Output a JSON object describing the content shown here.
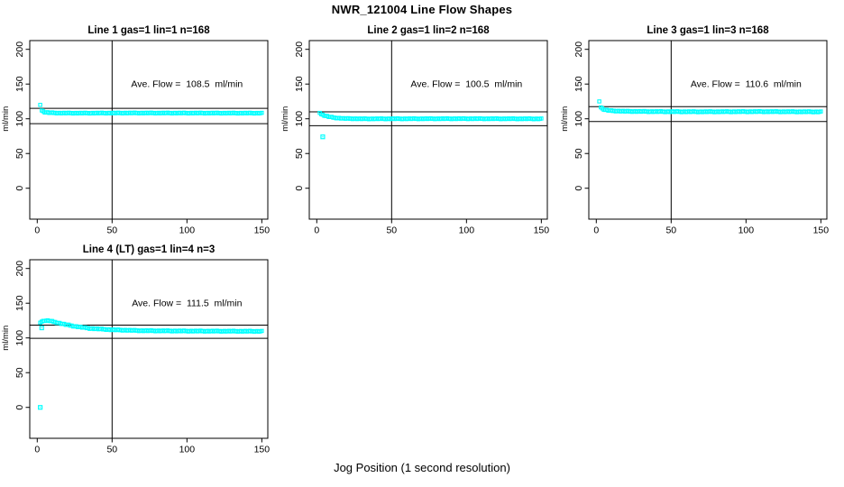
{
  "figure": {
    "title": "NWR_121004  Line Flow Shapes",
    "xlabel": "Jog Position (1 second resolution)",
    "background": "#FFFFFF",
    "marker_color": "#00FFFF",
    "line_color": "#000000"
  },
  "chart_data": [
    {
      "type": "scatter",
      "title": "Line 1 gas=1 lin=1 n=168",
      "annotation": "Ave. Flow =  108.5  ml/min",
      "ave_flow_ml_min": 108.5,
      "ylabel": "ml/min",
      "xlim": [
        -5,
        154
      ],
      "ylim": [
        -44.5,
        212.6
      ],
      "xticks": [
        0,
        50,
        100,
        150
      ],
      "yticks": [
        0,
        50,
        100,
        150,
        200
      ],
      "hlines": [
        115,
        93
      ],
      "vline": 50,
      "x_range": [
        2,
        150
      ],
      "jitter": 1.3,
      "anchors": [
        [
          2,
          120
        ],
        [
          3,
          112
        ],
        [
          4,
          110.5
        ],
        [
          5,
          109.5
        ],
        [
          8,
          108.8
        ],
        [
          15,
          108.3
        ],
        [
          30,
          108.2
        ],
        [
          60,
          108.4
        ],
        [
          100,
          108.3
        ],
        [
          150,
          108.2
        ]
      ],
      "extra_points": [],
      "annotation_xy": [
        100,
        150
      ]
    },
    {
      "type": "scatter",
      "title": "Line 2 gas=1 lin=2 n=168",
      "annotation": "Ave. Flow =  100.5  ml/min",
      "ave_flow_ml_min": 100.5,
      "ylabel": "ml/min",
      "xlim": [
        -5,
        154
      ],
      "ylim": [
        -44.5,
        212.6
      ],
      "xticks": [
        0,
        50,
        100,
        150
      ],
      "yticks": [
        0,
        50,
        100,
        150,
        200
      ],
      "hlines": [
        110,
        90
      ],
      "vline": 50,
      "x_range": [
        2,
        150
      ],
      "jitter": 1.3,
      "anchors": [
        [
          2,
          108.5
        ],
        [
          3,
          106.5
        ],
        [
          5,
          104.8
        ],
        [
          8,
          103
        ],
        [
          12,
          101.5
        ],
        [
          18,
          100.5
        ],
        [
          30,
          100
        ],
        [
          60,
          100.1
        ],
        [
          100,
          100.2
        ],
        [
          150,
          100
        ]
      ],
      "extra_points": [
        [
          4,
          74
        ]
      ],
      "annotation_xy": [
        100,
        150
      ]
    },
    {
      "type": "scatter",
      "title": "Line 3 gas=1 lin=3 n=168",
      "annotation": "Ave. Flow =  110.6  ml/min",
      "ave_flow_ml_min": 110.6,
      "ylabel": "ml/min",
      "xlim": [
        -5,
        154
      ],
      "ylim": [
        -44.5,
        212.6
      ],
      "xticks": [
        0,
        50,
        100,
        150
      ],
      "yticks": [
        0,
        50,
        100,
        150,
        200
      ],
      "hlines": [
        117.5,
        96
      ],
      "vline": 50,
      "x_range": [
        2,
        150
      ],
      "jitter": 1.5,
      "anchors": [
        [
          2,
          125
        ],
        [
          3,
          116.5
        ],
        [
          4,
          114.5
        ],
        [
          6,
          112.8
        ],
        [
          10,
          111.6
        ],
        [
          20,
          110.8
        ],
        [
          40,
          110.4
        ],
        [
          70,
          110.2
        ],
        [
          110,
          110.4
        ],
        [
          150,
          110.1
        ]
      ],
      "extra_points": [],
      "annotation_xy": [
        100,
        150
      ]
    },
    {
      "type": "scatter",
      "title": "Line 4 (LT) gas=1 lin=4 n=3",
      "annotation": "Ave. Flow =  111.5  ml/min",
      "ave_flow_ml_min": 111.5,
      "ylabel": "ml/min",
      "xlim": [
        -5,
        154
      ],
      "ylim": [
        -44.5,
        212.6
      ],
      "xticks": [
        0,
        50,
        100,
        150
      ],
      "yticks": [
        0,
        50,
        100,
        150,
        200
      ],
      "hlines": [
        118.5,
        99.5
      ],
      "vline": 50,
      "x_range": [
        2,
        150
      ],
      "jitter": 1.5,
      "anchors": [
        [
          2,
          122
        ],
        [
          3,
          123.5
        ],
        [
          5,
          125
        ],
        [
          8,
          124.8
        ],
        [
          12,
          122.8
        ],
        [
          18,
          119.8
        ],
        [
          25,
          116.8
        ],
        [
          35,
          113.8
        ],
        [
          50,
          111.8
        ],
        [
          70,
          110.5
        ],
        [
          100,
          110
        ],
        [
          150,
          109.6
        ]
      ],
      "extra_points": [
        [
          2,
          0
        ],
        [
          3,
          114.5
        ]
      ],
      "annotation_xy": [
        100,
        150
      ]
    }
  ]
}
